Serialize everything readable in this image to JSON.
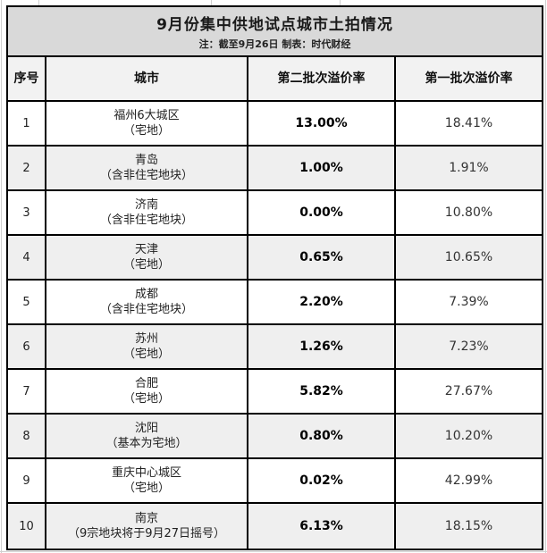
{
  "table": {
    "title": "9月份集中供地试点城市土拍情况",
    "subtitle": "注：截至9月26日 制表：时代财经",
    "columns": [
      "序号",
      "城市",
      "第二批次溢价率",
      "第一批次溢价率"
    ],
    "rows": [
      {
        "no": "1",
        "city": "福州6大城区",
        "note": "（宅地）",
        "batch2": "13.00%",
        "batch1": "18.41%"
      },
      {
        "no": "2",
        "city": "青岛",
        "note": "（含非住宅地块）",
        "batch2": "1.00%",
        "batch1": "1.91%"
      },
      {
        "no": "3",
        "city": "济南",
        "note": "（含非住宅地块）",
        "batch2": "0.00%",
        "batch1": "10.80%"
      },
      {
        "no": "4",
        "city": "天津",
        "note": "（宅地）",
        "batch2": "0.65%",
        "batch1": "10.65%"
      },
      {
        "no": "5",
        "city": "成都",
        "note": "（含非住宅地块）",
        "batch2": "2.20%",
        "batch1": "7.39%"
      },
      {
        "no": "6",
        "city": "苏州",
        "note": "（宅地）",
        "batch2": "1.26%",
        "batch1": "7.23%"
      },
      {
        "no": "7",
        "city": "合肥",
        "note": "（宅地）",
        "batch2": "5.82%",
        "batch1": "27.67%"
      },
      {
        "no": "8",
        "city": "沈阳",
        "note": "（基本为宅地）",
        "batch2": "0.80%",
        "batch1": "10.20%"
      },
      {
        "no": "9",
        "city": "重庆中心城区",
        "note": "（宅地）",
        "batch2": "0.02%",
        "batch1": "42.99%"
      },
      {
        "no": "10",
        "city": "南京",
        "note": "（9宗地块将于9月27日摇号）",
        "batch2": "6.13%",
        "batch1": "18.15%"
      }
    ],
    "colors": {
      "title_bg": "#d9d9d9",
      "header_bg": "#f2f2f2",
      "row_alt_bg": "#efefef",
      "border": "#000000"
    }
  },
  "chart_data": {
    "type": "table",
    "title": "9月份集中供地试点城市土拍情况",
    "subtitle": "注：截至9月26日 制表：时代财经",
    "columns": [
      "序号",
      "城市",
      "第二批次溢价率",
      "第一批次溢价率"
    ],
    "categories": [
      "福州6大城区（宅地）",
      "青岛（含非住宅地块）",
      "济南（含非住宅地块）",
      "天津（宅地）",
      "成都（含非住宅地块）",
      "苏州（宅地）",
      "合肥（宅地）",
      "沈阳（基本为宅地）",
      "重庆中心城区（宅地）",
      "南京（9宗地块将于9月27日摇号）"
    ],
    "series": [
      {
        "name": "第二批次溢价率",
        "values": [
          13.0,
          1.0,
          0.0,
          0.65,
          2.2,
          1.26,
          5.82,
          0.8,
          0.02,
          6.13
        ]
      },
      {
        "name": "第一批次溢价率",
        "values": [
          18.41,
          1.91,
          10.8,
          10.65,
          7.39,
          7.23,
          27.67,
          10.2,
          42.99,
          18.15
        ]
      }
    ],
    "unit": "%"
  }
}
